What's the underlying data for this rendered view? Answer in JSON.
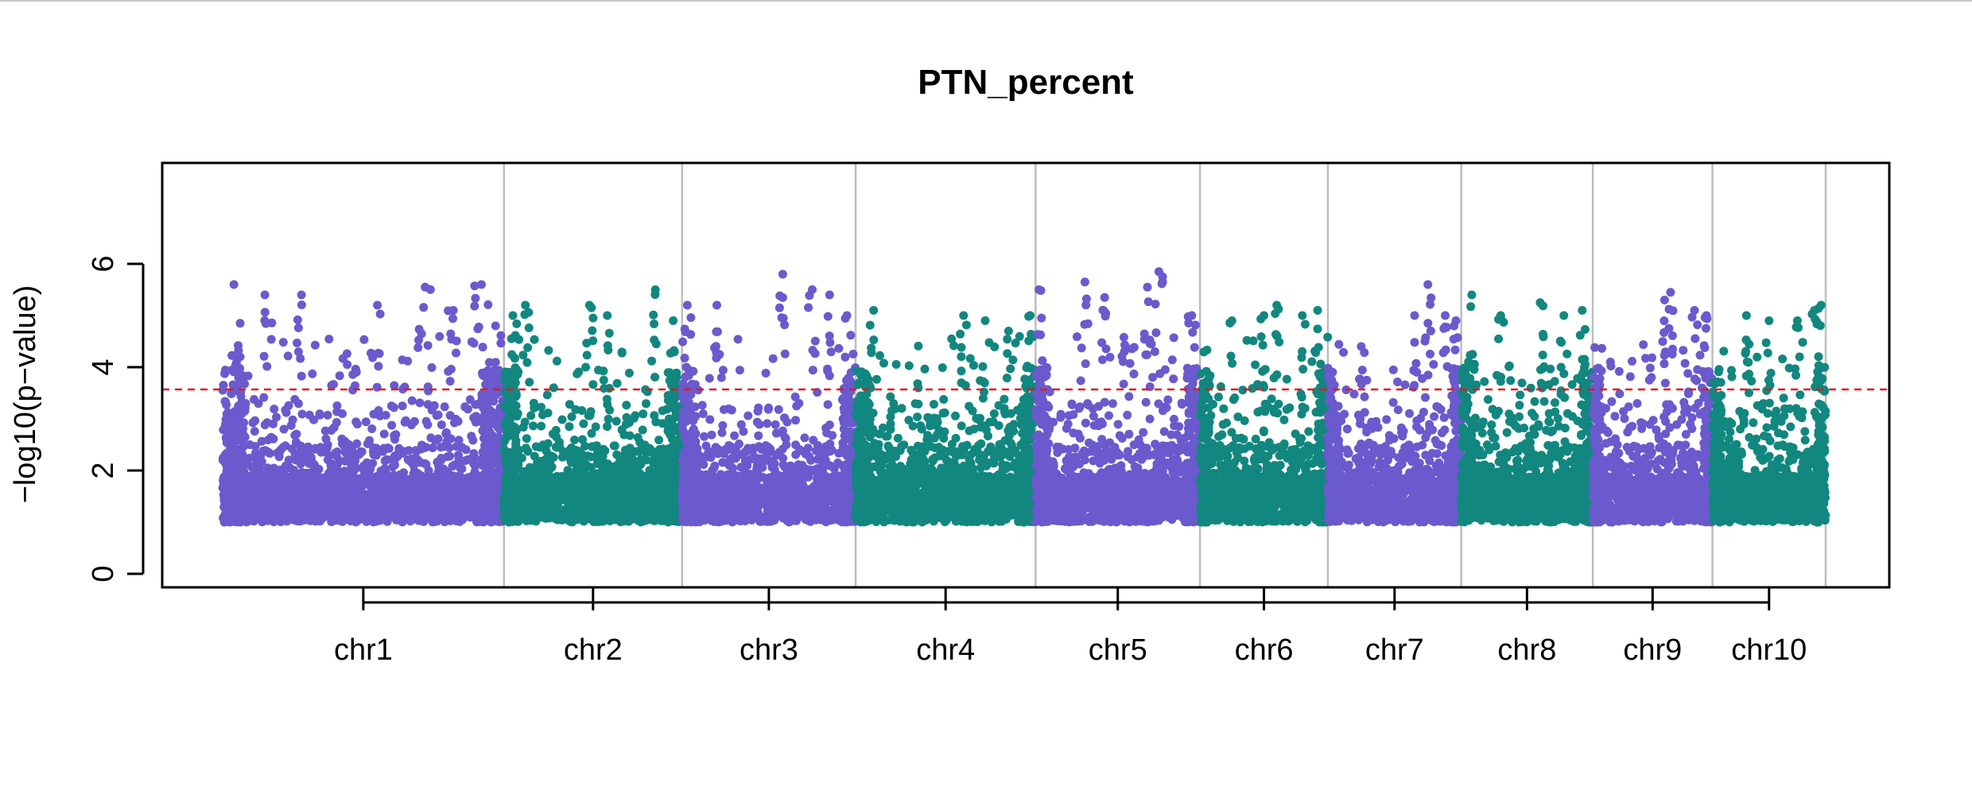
{
  "chart_data": {
    "type": "scatter",
    "title": "PTN_percent",
    "xlabel": "",
    "ylabel": "−log10(p−value)",
    "ylim": [
      0,
      7.6
    ],
    "yticks": [
      0,
      2,
      4,
      6
    ],
    "threshold": 3.57,
    "threshold_color": "#e31a1c",
    "grid": false,
    "legend": "none",
    "point_colors": [
      "#6a5acd",
      "#12877f"
    ],
    "boundary_color": "#bdbdbd",
    "chromosomes": [
      {
        "name": "chr1",
        "start": 0,
        "end": 308,
        "color": "#6a5acd",
        "peaks": [
          {
            "x": 0.04,
            "y": 5.6
          },
          {
            "x": 0.15,
            "y": 5.4
          },
          {
            "x": 0.28,
            "y": 5.4
          },
          {
            "x": 0.55,
            "y": 5.2
          },
          {
            "x": 0.72,
            "y": 5.55
          },
          {
            "x": 0.82,
            "y": 5.1
          },
          {
            "x": 0.92,
            "y": 5.6
          },
          {
            "x": 0.97,
            "y": 4.8
          }
        ]
      },
      {
        "name": "chr2",
        "start": 308,
        "end": 503,
        "color": "#12877f",
        "peaks": [
          {
            "x": 0.05,
            "y": 5.0
          },
          {
            "x": 0.12,
            "y": 5.2
          },
          {
            "x": 0.48,
            "y": 5.2
          },
          {
            "x": 0.58,
            "y": 5.0
          },
          {
            "x": 0.85,
            "y": 5.5
          },
          {
            "x": 0.95,
            "y": 4.9
          }
        ]
      },
      {
        "name": "chr3",
        "start": 503,
        "end": 693,
        "color": "#6a5acd",
        "peaks": [
          {
            "x": 0.03,
            "y": 5.2
          },
          {
            "x": 0.2,
            "y": 5.2
          },
          {
            "x": 0.58,
            "y": 5.8
          },
          {
            "x": 0.75,
            "y": 5.5
          },
          {
            "x": 0.85,
            "y": 5.4
          },
          {
            "x": 0.95,
            "y": 5.0
          }
        ]
      },
      {
        "name": "chr4",
        "start": 693,
        "end": 890,
        "color": "#12877f",
        "peaks": [
          {
            "x": 0.1,
            "y": 5.1
          },
          {
            "x": 0.6,
            "y": 5.0
          },
          {
            "x": 0.72,
            "y": 4.9
          },
          {
            "x": 0.85,
            "y": 4.7
          },
          {
            "x": 0.97,
            "y": 5.0
          }
        ]
      },
      {
        "name": "chr5",
        "start": 890,
        "end": 1070,
        "color": "#6a5acd",
        "peaks": [
          {
            "x": 0.02,
            "y": 5.5
          },
          {
            "x": 0.3,
            "y": 5.65
          },
          {
            "x": 0.42,
            "y": 5.35
          },
          {
            "x": 0.68,
            "y": 5.55
          },
          {
            "x": 0.75,
            "y": 5.85
          },
          {
            "x": 0.95,
            "y": 5.0
          }
        ]
      },
      {
        "name": "chr6",
        "start": 1070,
        "end": 1210,
        "color": "#12877f",
        "peaks": [
          {
            "x": 0.25,
            "y": 4.9
          },
          {
            "x": 0.5,
            "y": 5.0
          },
          {
            "x": 0.6,
            "y": 5.2
          },
          {
            "x": 0.8,
            "y": 5.0
          },
          {
            "x": 0.92,
            "y": 5.1
          }
        ]
      },
      {
        "name": "chr7",
        "start": 1210,
        "end": 1356,
        "color": "#6a5acd",
        "peaks": [
          {
            "x": 0.25,
            "y": 4.4
          },
          {
            "x": 0.65,
            "y": 5.0
          },
          {
            "x": 0.75,
            "y": 5.6
          },
          {
            "x": 0.88,
            "y": 5.0
          },
          {
            "x": 0.96,
            "y": 4.9
          }
        ]
      },
      {
        "name": "chr8",
        "start": 1356,
        "end": 1500,
        "color": "#12877f",
        "peaks": [
          {
            "x": 0.08,
            "y": 5.4
          },
          {
            "x": 0.3,
            "y": 5.0
          },
          {
            "x": 0.6,
            "y": 5.25
          },
          {
            "x": 0.78,
            "y": 5.0
          },
          {
            "x": 0.92,
            "y": 5.1
          }
        ]
      },
      {
        "name": "chr9",
        "start": 1500,
        "end": 1631,
        "color": "#6a5acd",
        "peaks": [
          {
            "x": 0.6,
            "y": 5.3
          },
          {
            "x": 0.65,
            "y": 5.45
          },
          {
            "x": 0.85,
            "y": 5.1
          },
          {
            "x": 0.95,
            "y": 5.0
          }
        ]
      },
      {
        "name": "chr10",
        "start": 1631,
        "end": 1755,
        "color": "#12877f",
        "peaks": [
          {
            "x": 0.3,
            "y": 5.0
          },
          {
            "x": 0.5,
            "y": 4.9
          },
          {
            "x": 0.75,
            "y": 4.9
          },
          {
            "x": 0.9,
            "y": 5.1
          },
          {
            "x": 0.96,
            "y": 5.2
          }
        ]
      }
    ]
  }
}
